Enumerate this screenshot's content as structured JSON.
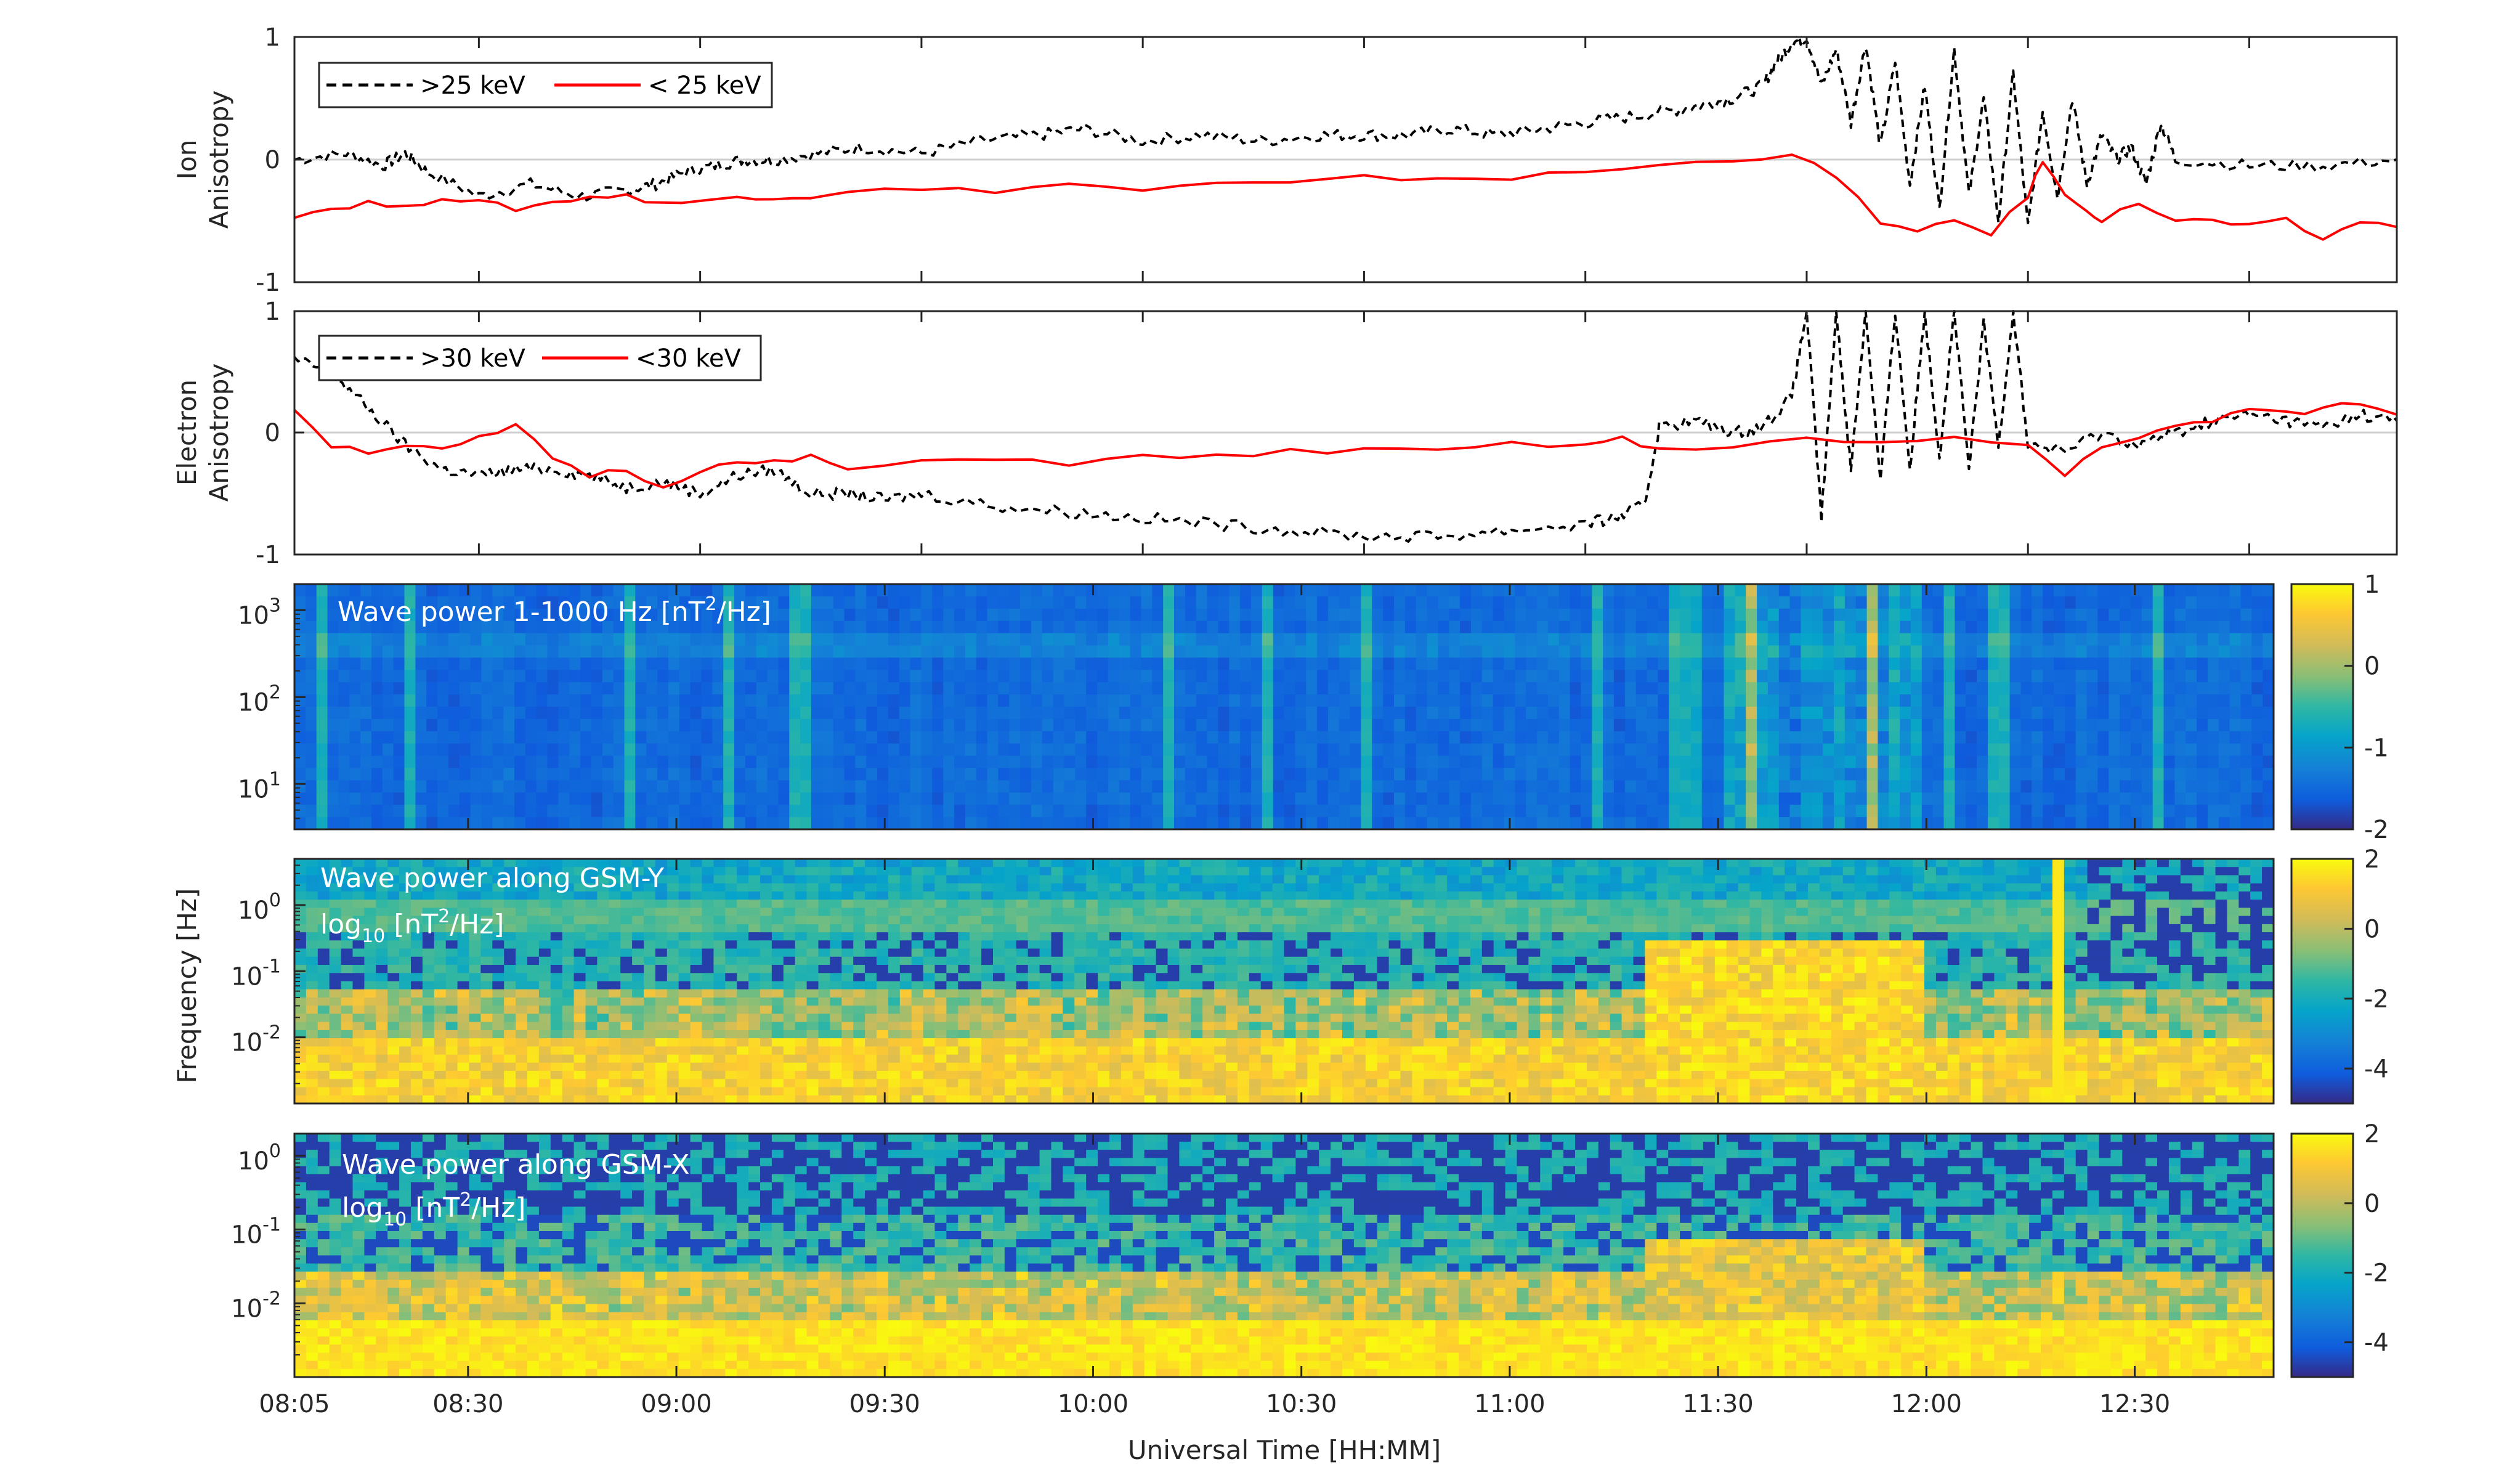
{
  "colors": {
    "axis": "#262626",
    "red_series": "#ff0000",
    "black_series": "#000000",
    "zero_line": "#cfcfcf",
    "parula_low": "#352a87",
    "parula_high": "#f9fb0e"
  },
  "xaxis": {
    "label": "Universal Time [HH:MM]",
    "tick_labels": [
      "08:05",
      "08:30",
      "09:00",
      "09:30",
      "10:00",
      "10:30",
      "11:00",
      "11:30",
      "12:00",
      "12:30"
    ],
    "tick_minutes": [
      485,
      510,
      540,
      570,
      600,
      630,
      660,
      690,
      720,
      750
    ],
    "range_minutes": [
      485,
      770
    ]
  },
  "shared_ylabel": "Frequency [Hz]",
  "chart_data": [
    {
      "type": "line",
      "ylabel_lines": [
        "Ion",
        "Anisotropy"
      ],
      "ylim": [
        -1,
        1
      ],
      "yticks": [
        "-1",
        "0",
        "1"
      ],
      "legend": {
        "placement": "top-left",
        "entries": [
          ">25 keV",
          "< 25 keV"
        ]
      },
      "series": [
        {
          "name": ">25 keV",
          "style": "dashed",
          "color": "#000000",
          "x": [
            485,
            492,
            497,
            500,
            503,
            510,
            517,
            524,
            530,
            534,
            538,
            542,
            546,
            550,
            556,
            562,
            570,
            578,
            586,
            592,
            600,
            608,
            616,
            624,
            630,
            636,
            642,
            648,
            654,
            660,
            666,
            672,
            676,
            680,
            684,
            686,
            688,
            690,
            692,
            694,
            696,
            698,
            700,
            702,
            704,
            706,
            708,
            710,
            712,
            714,
            716,
            718,
            720,
            722,
            724,
            726,
            728,
            730,
            732,
            734,
            736,
            738,
            740,
            750,
            760,
            770
          ],
          "y": [
            0.0,
            0.05,
            -0.05,
            0.05,
            -0.1,
            -0.3,
            -0.2,
            -0.3,
            -0.25,
            -0.2,
            -0.1,
            -0.05,
            0.0,
            0.0,
            0.05,
            0.1,
            0.05,
            0.15,
            0.2,
            0.25,
            0.15,
            0.2,
            0.15,
            0.2,
            0.2,
            0.2,
            0.25,
            0.2,
            0.25,
            0.3,
            0.35,
            0.4,
            0.45,
            0.5,
            0.6,
            0.8,
            0.95,
            1.0,
            0.6,
            0.9,
            0.3,
            0.95,
            0.1,
            0.8,
            -0.2,
            0.6,
            -0.4,
            0.9,
            -0.3,
            0.5,
            -0.5,
            0.7,
            -0.55,
            0.4,
            -0.3,
            0.5,
            -0.2,
            0.2,
            0.0,
            0.1,
            -0.2,
            0.3,
            0.0,
            -0.05,
            -0.05,
            0.0
          ]
        },
        {
          "name": "< 25 keV",
          "style": "solid",
          "color": "#ff0000",
          "x": [
            485,
            490,
            495,
            500,
            505,
            510,
            515,
            520,
            525,
            530,
            535,
            540,
            545,
            550,
            555,
            560,
            570,
            580,
            590,
            600,
            610,
            620,
            630,
            640,
            650,
            660,
            670,
            680,
            688,
            694,
            700,
            705,
            710,
            715,
            720,
            722,
            725,
            728,
            730,
            735,
            740,
            745,
            750,
            755,
            760,
            765,
            770
          ],
          "y": [
            -0.45,
            -0.4,
            -0.35,
            -0.4,
            -0.3,
            -0.35,
            -0.4,
            -0.35,
            -0.3,
            -0.3,
            -0.35,
            -0.35,
            -0.3,
            -0.3,
            -0.3,
            -0.25,
            -0.25,
            -0.25,
            -0.2,
            -0.25,
            -0.2,
            -0.2,
            -0.15,
            -0.15,
            -0.15,
            -0.1,
            -0.05,
            0.0,
            0.05,
            -0.15,
            -0.5,
            -0.6,
            -0.5,
            -0.6,
            -0.3,
            0.0,
            -0.3,
            -0.4,
            -0.5,
            -0.35,
            -0.5,
            -0.5,
            -0.55,
            -0.5,
            -0.65,
            -0.5,
            -0.55
          ]
        }
      ]
    },
    {
      "type": "line",
      "ylabel_lines": [
        "Electron",
        "Anisotropy"
      ],
      "ylim": [
        -1,
        1
      ],
      "yticks": [
        "-1",
        "0",
        "1"
      ],
      "legend": {
        "placement": "top-left",
        "entries": [
          ">30 keV",
          "<30 keV"
        ]
      },
      "series": [
        {
          "name": ">30 keV",
          "style": "dashed",
          "color": "#000000",
          "x": [
            485,
            490,
            495,
            500,
            505,
            510,
            515,
            520,
            525,
            530,
            535,
            540,
            545,
            550,
            555,
            560,
            565,
            570,
            580,
            590,
            600,
            610,
            620,
            630,
            640,
            650,
            660,
            664,
            668,
            670,
            675,
            680,
            684,
            688,
            690,
            692,
            694,
            696,
            698,
            700,
            702,
            704,
            706,
            708,
            710,
            712,
            714,
            716,
            718,
            720,
            725,
            730,
            735,
            740,
            745,
            750,
            755,
            760,
            765,
            770
          ],
          "y": [
            0.6,
            0.5,
            0.2,
            -0.1,
            -0.3,
            -0.35,
            -0.3,
            -0.3,
            -0.35,
            -0.45,
            -0.4,
            -0.5,
            -0.35,
            -0.3,
            -0.5,
            -0.5,
            -0.55,
            -0.5,
            -0.6,
            -0.65,
            -0.7,
            -0.75,
            -0.8,
            -0.85,
            -0.85,
            -0.8,
            -0.75,
            -0.7,
            -0.6,
            0.05,
            0.1,
            0.0,
            0.05,
            0.3,
            1.0,
            -0.7,
            1.0,
            -0.3,
            1.0,
            -0.4,
            1.0,
            -0.3,
            1.0,
            -0.2,
            1.0,
            -0.3,
            0.9,
            -0.1,
            1.0,
            -0.1,
            -0.15,
            0.0,
            -0.1,
            0.0,
            0.1,
            0.15,
            0.1,
            0.05,
            0.15,
            0.1
          ]
        },
        {
          "name": "<30 keV",
          "style": "solid",
          "color": "#ff0000",
          "x": [
            485,
            490,
            495,
            500,
            505,
            510,
            515,
            520,
            525,
            530,
            535,
            540,
            545,
            550,
            555,
            560,
            570,
            580,
            590,
            600,
            610,
            620,
            630,
            640,
            650,
            660,
            665,
            670,
            680,
            690,
            700,
            710,
            720,
            725,
            730,
            735,
            740,
            745,
            750,
            755,
            760,
            765,
            770
          ],
          "y": [
            0.2,
            -0.1,
            -0.15,
            -0.1,
            -0.15,
            -0.05,
            0.05,
            -0.2,
            -0.35,
            -0.3,
            -0.45,
            -0.3,
            -0.25,
            -0.25,
            -0.2,
            -0.3,
            -0.25,
            -0.2,
            -0.25,
            -0.2,
            -0.2,
            -0.15,
            -0.15,
            -0.15,
            -0.1,
            -0.1,
            -0.05,
            -0.15,
            -0.1,
            -0.05,
            -0.1,
            -0.05,
            -0.1,
            -0.35,
            -0.1,
            -0.05,
            0.05,
            0.1,
            0.2,
            0.15,
            0.2,
            0.25,
            0.15
          ]
        }
      ]
    },
    {
      "type": "heatmap",
      "annotation": "Wave power 1-1000 Hz [nT",
      "annotation_sup": "2",
      "annotation_tail": "/Hz]",
      "yscale": "log",
      "ylim": [
        3,
        2000
      ],
      "yticks": [
        {
          "value": 10,
          "base": "10",
          "exp": "1"
        },
        {
          "value": 100,
          "base": "10",
          "exp": "2"
        },
        {
          "value": 1000,
          "base": "10",
          "exp": "3"
        }
      ],
      "colorbar": {
        "ticks": [
          "1",
          "0",
          "-1",
          "-2"
        ],
        "tick_values": [
          1,
          0,
          -1,
          -2
        ],
        "range": [
          -2,
          1
        ]
      },
      "hot_spans_minutes": [
        [
          690,
          720
        ],
        [
          720,
          745
        ]
      ]
    },
    {
      "type": "heatmap",
      "annotation_line1": "Wave power along GSM-Y",
      "annotation_line2_base": "log",
      "annotation_line2_sub": "10",
      "annotation_line2_mid": " [nT",
      "annotation_line2_sup": "2",
      "annotation_line2_tail": "/Hz]",
      "yscale": "log",
      "ylim": [
        0.001,
        5
      ],
      "yticks": [
        {
          "value": 0.01,
          "base": "10",
          "exp": "-2"
        },
        {
          "value": 0.1,
          "base": "10",
          "exp": "-1"
        },
        {
          "value": 1,
          "base": "10",
          "exp": "0"
        }
      ],
      "colorbar": {
        "ticks": [
          "2",
          "0",
          "-2",
          "-4"
        ],
        "tick_values": [
          2,
          0,
          -2,
          -4
        ],
        "range": [
          -5,
          2
        ]
      },
      "spike_minutes": 742
    },
    {
      "type": "heatmap",
      "annotation_line1": "Wave power along GSM-X",
      "annotation_line2_base": "log",
      "annotation_line2_sub": "10",
      "annotation_line2_mid": " [nT",
      "annotation_line2_sup": "2",
      "annotation_line2_tail": "/Hz]",
      "yscale": "log",
      "ylim": [
        0.001,
        2
      ],
      "yticks": [
        {
          "value": 0.01,
          "base": "10",
          "exp": "-2"
        },
        {
          "value": 0.1,
          "base": "10",
          "exp": "-1"
        },
        {
          "value": 1,
          "base": "10",
          "exp": "0"
        }
      ],
      "colorbar": {
        "ticks": [
          "2",
          "0",
          "-2",
          "-4"
        ],
        "tick_values": [
          2,
          0,
          -2,
          -4
        ],
        "range": [
          -5,
          2
        ]
      }
    }
  ]
}
